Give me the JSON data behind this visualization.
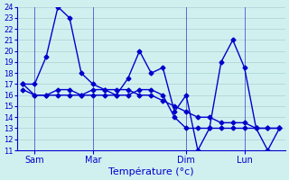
{
  "background_color": "#d0f0f0",
  "grid_color": "#aad0d0",
  "line_color": "#0000cc",
  "title": "Température (°c)",
  "ylabel": "",
  "ylim": [
    11,
    24
  ],
  "yticks": [
    11,
    12,
    13,
    14,
    15,
    16,
    17,
    18,
    19,
    20,
    21,
    22,
    23,
    24
  ],
  "day_labels": [
    "Sam",
    "Mar",
    "Dim",
    "Lun"
  ],
  "day_positions": [
    1,
    5,
    9,
    13
  ],
  "series1": [
    17,
    17,
    19.5,
    24,
    23,
    18,
    17,
    16.5,
    16,
    17.5,
    20,
    18,
    18.5,
    14.5,
    16,
    11,
    13,
    19,
    21,
    18.5,
    13,
    11,
    13
  ],
  "series2": [
    16.5,
    16,
    16,
    16.5,
    16.5,
    16,
    16,
    16,
    16,
    16,
    16.5,
    16.5,
    16,
    14,
    13,
    13,
    13,
    13,
    13,
    13,
    13,
    13,
    13
  ],
  "series3": [
    17,
    16,
    16,
    16,
    16,
    16,
    16.5,
    16.5,
    16.5,
    16.5,
    16,
    16,
    15.5,
    15,
    14.5,
    14,
    14,
    13.5,
    13.5,
    13.5,
    13,
    13,
    13
  ],
  "n_points": 23
}
